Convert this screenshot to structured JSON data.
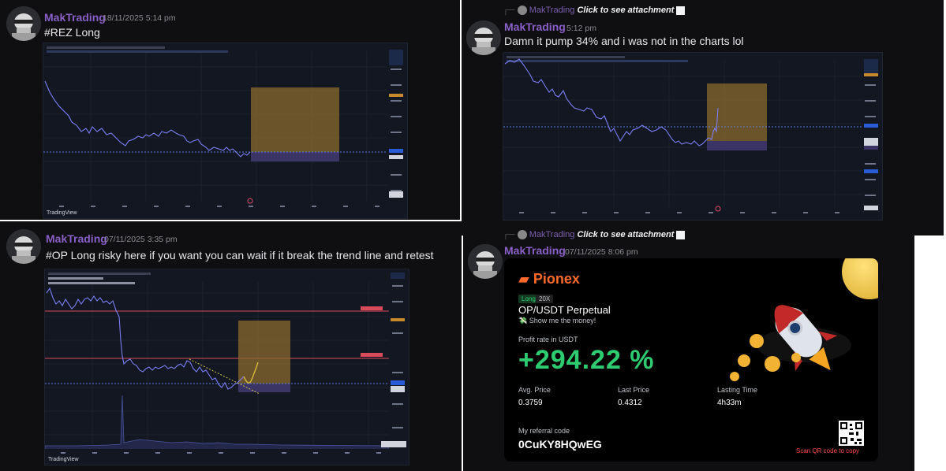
{
  "colors": {
    "discord_bg": "#0f0f11",
    "username": "#8a5fc7",
    "chart_bg": "#131722",
    "price_line": "#7b7ff5",
    "profit_green": "#2ecc71",
    "pionex_orange": "#ff6a2b"
  },
  "post_rez": {
    "username": "MakTrading",
    "timestamp": "18/11/2025 5:14 pm",
    "message": "#REZ Long",
    "chart_footer": "TradingView"
  },
  "post_rez_reply": {
    "reply_username": "MakTrading",
    "reply_attachment": "Click to see attachment",
    "reply_icon": "image-icon",
    "username": "MakTrading",
    "timestamp": "5:12 pm",
    "message": "Damn it pump 34% and i was not in the charts lol"
  },
  "post_op": {
    "username": "MakTrading",
    "timestamp": "07/11/2025 3:35 pm",
    "message": "#OP Long risky here if you want you can wait if it break the trend line and retest",
    "chart_footer": "TradingView"
  },
  "post_op_reply": {
    "reply_username": "MakTrading",
    "reply_attachment": "Click to see attachment",
    "reply_icon": "image-icon",
    "username": "MakTrading",
    "timestamp": "07/11/2025 8:06 pm"
  },
  "pionex_card": {
    "brand": "Pionex",
    "side": "Long",
    "leverage": "20X",
    "pair": "OP/USDT Perpetual",
    "tagline": "Show me the money!",
    "profit_label": "Profit rate in USDT",
    "profit_value": "+294.22 %",
    "avg_price_label": "Avg. Price",
    "avg_price": "0.3759",
    "last_price_label": "Last Price",
    "last_price": "0.4312",
    "lasting_time_label": "Lasting Time",
    "lasting_time": "4h33m",
    "referral_label": "My referral code",
    "referral_code": "0CuKY8HQwEG",
    "scan_text": "Scan QR code to copy"
  }
}
